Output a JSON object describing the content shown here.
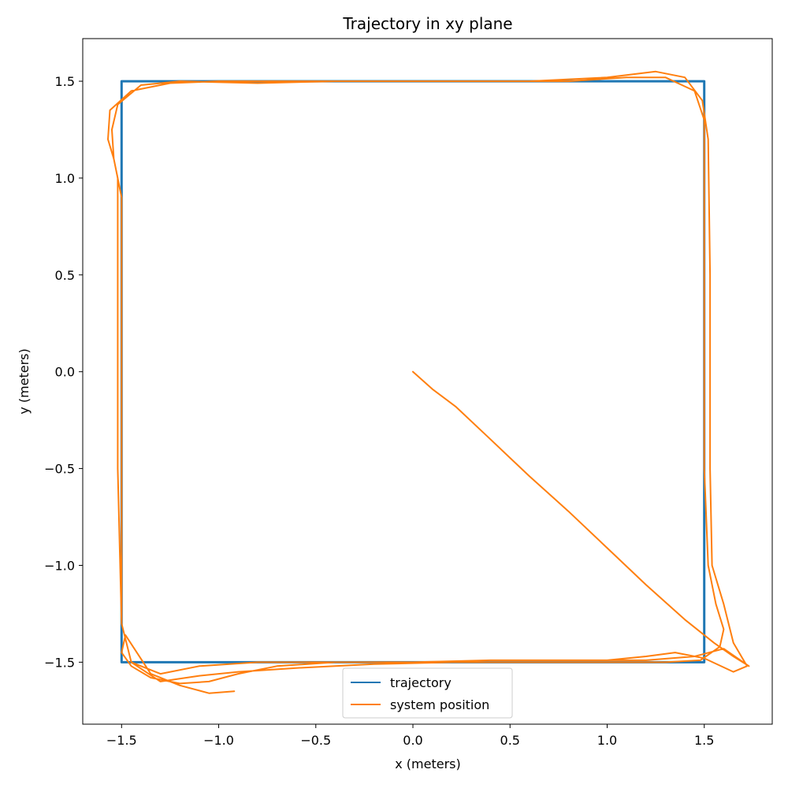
{
  "chart_data": {
    "type": "line",
    "title": "Trajectory in xy plane",
    "xlabel": "x (meters)",
    "ylabel": "y (meters)",
    "xlim": [
      -1.7,
      1.85
    ],
    "ylim": [
      -1.82,
      1.72
    ],
    "xticks": [
      {
        "value": -1.5,
        "label": "−1.5"
      },
      {
        "value": -1.0,
        "label": "−1.0"
      },
      {
        "value": -0.5,
        "label": "−0.5"
      },
      {
        "value": 0.0,
        "label": "0.0"
      },
      {
        "value": 0.5,
        "label": "0.5"
      },
      {
        "value": 1.0,
        "label": "1.0"
      },
      {
        "value": 1.5,
        "label": "1.5"
      }
    ],
    "yticks": [
      {
        "value": -1.5,
        "label": "−1.5"
      },
      {
        "value": -1.0,
        "label": "−1.0"
      },
      {
        "value": -0.5,
        "label": "−0.5"
      },
      {
        "value": 0.0,
        "label": "0.0"
      },
      {
        "value": 0.5,
        "label": "0.5"
      },
      {
        "value": 1.0,
        "label": "1.0"
      },
      {
        "value": 1.5,
        "label": "1.5"
      }
    ],
    "grid": false,
    "legend_position": "bottom-center",
    "series": [
      {
        "name": "trajectory",
        "color": "#1f77b4",
        "x": [
          -1.5,
          1.5,
          1.5,
          -1.5,
          -1.5
        ],
        "y": [
          1.5,
          1.5,
          -1.5,
          -1.5,
          1.5
        ]
      },
      {
        "name": "system position",
        "color": "#ff7f0e",
        "x": [
          0.0,
          0.1,
          0.22,
          0.4,
          0.6,
          0.8,
          1.0,
          1.2,
          1.4,
          1.55,
          1.65,
          1.73,
          1.6,
          1.45,
          1.2,
          0.8,
          0.4,
          0.0,
          -0.4,
          -0.8,
          -1.1,
          -1.3,
          -1.45,
          -1.5,
          -1.5,
          -1.5,
          -1.5,
          -1.54,
          -1.55,
          -1.52,
          -1.4,
          -1.2,
          -0.8,
          -0.4,
          0.0,
          0.4,
          0.8,
          1.1,
          1.3,
          1.45,
          1.5,
          1.5,
          1.5,
          1.52,
          1.56,
          1.6,
          1.58,
          1.48,
          1.3,
          1.0,
          0.6,
          0.2,
          -0.2,
          -0.6,
          -0.9,
          -1.1,
          -1.3,
          -1.45,
          -1.5,
          -1.52,
          -1.52,
          -1.52,
          -1.54,
          -1.57,
          -1.56,
          -1.45,
          -1.25,
          -1.0,
          -0.6,
          -0.2,
          0.2,
          0.6,
          1.0,
          1.25,
          1.4,
          1.49,
          1.52,
          1.53,
          1.53,
          1.54,
          1.6,
          1.65,
          1.72,
          1.65,
          1.5,
          1.35,
          1.2,
          1.0,
          0.7,
          0.4,
          0.0,
          -0.4,
          -0.7,
          -0.9,
          -1.05,
          -1.2,
          -1.35,
          -1.45,
          -1.5,
          -1.48,
          -1.35,
          -1.2,
          -1.05,
          -0.92
        ],
        "y": [
          0.0,
          -0.09,
          -0.18,
          -0.35,
          -0.54,
          -0.72,
          -0.91,
          -1.1,
          -1.28,
          -1.4,
          -1.47,
          -1.52,
          -1.43,
          -1.47,
          -1.49,
          -1.49,
          -1.49,
          -1.5,
          -1.5,
          -1.5,
          -1.52,
          -1.56,
          -1.5,
          -1.3,
          -0.6,
          0.2,
          0.9,
          1.1,
          1.25,
          1.38,
          1.48,
          1.5,
          1.49,
          1.5,
          1.5,
          1.5,
          1.5,
          1.52,
          1.52,
          1.45,
          1.3,
          0.5,
          -0.5,
          -1.0,
          -1.2,
          -1.33,
          -1.42,
          -1.49,
          -1.5,
          -1.5,
          -1.5,
          -1.5,
          -1.51,
          -1.53,
          -1.55,
          -1.57,
          -1.6,
          -1.5,
          -1.3,
          -0.5,
          0.3,
          1.0,
          1.1,
          1.2,
          1.35,
          1.45,
          1.49,
          1.5,
          1.5,
          1.5,
          1.5,
          1.5,
          1.52,
          1.55,
          1.52,
          1.4,
          1.2,
          0.5,
          -0.5,
          -1.0,
          -1.2,
          -1.4,
          -1.52,
          -1.55,
          -1.48,
          -1.45,
          -1.47,
          -1.49,
          -1.49,
          -1.49,
          -1.5,
          -1.5,
          -1.52,
          -1.56,
          -1.6,
          -1.61,
          -1.58,
          -1.52,
          -1.45,
          -1.36,
          -1.56,
          -1.62,
          -1.66,
          -1.65
        ]
      }
    ]
  }
}
